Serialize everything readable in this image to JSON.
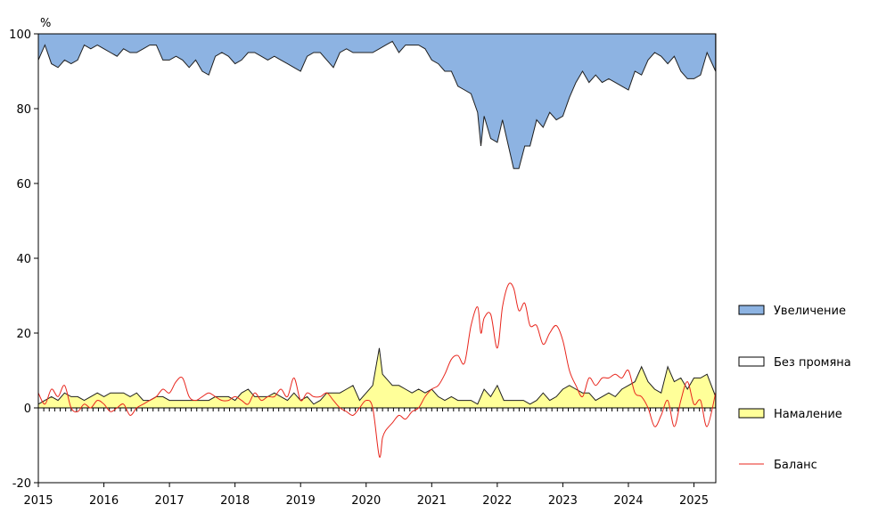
{
  "chart_data": {
    "type": "area",
    "title": "",
    "ylabel": "%",
    "xlabel": "",
    "ylim": [
      -20,
      100
    ],
    "xlim": [
      2015.0,
      2025.333
    ],
    "y_ticks": [
      -20,
      0,
      20,
      40,
      60,
      80,
      100
    ],
    "x_ticks": [
      2015,
      2016,
      2017,
      2018,
      2019,
      2020,
      2021,
      2022,
      2023,
      2024,
      2025
    ],
    "x_tick_labels": [
      "2015",
      "2016",
      "2017",
      "2018",
      "2019",
      "2020",
      "2021",
      "2022",
      "2023",
      "2024",
      "2025"
    ],
    "grid": false,
    "legend_position": "right",
    "series": [
      {
        "name": "Увеличение",
        "kind": "area-top",
        "color": "#8db3e2",
        "x": [
          2015.0,
          2015.1,
          2015.2,
          2015.3,
          2015.4,
          2015.5,
          2015.6,
          2015.7,
          2015.8,
          2015.9,
          2016.0,
          2016.1,
          2016.2,
          2016.3,
          2016.4,
          2016.5,
          2016.6,
          2016.7,
          2016.8,
          2016.9,
          2017.0,
          2017.1,
          2017.2,
          2017.3,
          2017.4,
          2017.5,
          2017.6,
          2017.7,
          2017.8,
          2017.9,
          2018.0,
          2018.1,
          2018.2,
          2018.3,
          2018.4,
          2018.5,
          2018.6,
          2018.7,
          2018.8,
          2018.9,
          2019.0,
          2019.1,
          2019.2,
          2019.3,
          2019.4,
          2019.5,
          2019.6,
          2019.7,
          2019.8,
          2019.9,
          2020.0,
          2020.1,
          2020.2,
          2020.3,
          2020.4,
          2020.5,
          2020.6,
          2020.7,
          2020.8,
          2020.9,
          2021.0,
          2021.1,
          2021.2,
          2021.3,
          2021.4,
          2021.5,
          2021.6,
          2021.7,
          2021.75,
          2021.8,
          2021.9,
          2022.0,
          2022.08,
          2022.17,
          2022.25,
          2022.33,
          2022.42,
          2022.5,
          2022.6,
          2022.7,
          2022.8,
          2022.9,
          2023.0,
          2023.1,
          2023.2,
          2023.3,
          2023.4,
          2023.5,
          2023.6,
          2023.7,
          2023.8,
          2023.9,
          2024.0,
          2024.1,
          2024.2,
          2024.3,
          2024.4,
          2024.5,
          2024.6,
          2024.7,
          2024.8,
          2024.9,
          2025.0,
          2025.1,
          2025.2,
          2025.33
        ],
        "values": [
          93,
          97,
          92,
          91,
          93,
          92,
          93,
          97,
          96,
          97,
          96,
          95,
          94,
          96,
          95,
          95,
          96,
          97,
          97,
          93,
          93,
          94,
          93,
          91,
          93,
          90,
          89,
          94,
          95,
          94,
          92,
          93,
          95,
          95,
          94,
          93,
          94,
          93,
          92,
          91,
          90,
          94,
          95,
          95,
          93,
          91,
          95,
          96,
          95,
          95,
          95,
          95,
          96,
          97,
          98,
          95,
          97,
          97,
          97,
          96,
          93,
          92,
          90,
          90,
          86,
          85,
          84,
          79,
          70,
          78,
          72,
          71,
          77,
          70,
          64,
          64,
          70,
          70,
          77,
          75,
          79,
          77,
          78,
          83,
          87,
          90,
          87,
          89,
          87,
          88,
          87,
          86,
          85,
          90,
          89,
          93,
          95,
          94,
          92,
          94,
          90,
          88,
          88,
          89,
          95,
          90
        ],
        "legend_label": "Увеличение"
      },
      {
        "name": "Без промяна",
        "kind": "area-middle",
        "color": "#ffffff",
        "legend_label": "Без промяна"
      },
      {
        "name": "Намаление",
        "kind": "area-bottom",
        "color": "#ffff99",
        "x": [
          2015.0,
          2015.1,
          2015.2,
          2015.3,
          2015.4,
          2015.5,
          2015.6,
          2015.7,
          2015.8,
          2015.9,
          2016.0,
          2016.1,
          2016.2,
          2016.3,
          2016.4,
          2016.5,
          2016.6,
          2016.7,
          2016.8,
          2016.9,
          2017.0,
          2017.1,
          2017.2,
          2017.3,
          2017.4,
          2017.5,
          2017.6,
          2017.7,
          2017.8,
          2017.9,
          2018.0,
          2018.1,
          2018.2,
          2018.3,
          2018.4,
          2018.5,
          2018.6,
          2018.7,
          2018.8,
          2018.9,
          2019.0,
          2019.1,
          2019.2,
          2019.3,
          2019.4,
          2019.5,
          2019.6,
          2019.7,
          2019.8,
          2019.9,
          2020.0,
          2020.1,
          2020.2,
          2020.25,
          2020.3,
          2020.4,
          2020.5,
          2020.6,
          2020.7,
          2020.8,
          2020.9,
          2021.0,
          2021.1,
          2021.2,
          2021.3,
          2021.4,
          2021.5,
          2021.6,
          2021.7,
          2021.8,
          2021.9,
          2022.0,
          2022.1,
          2022.2,
          2022.3,
          2022.4,
          2022.5,
          2022.6,
          2022.7,
          2022.8,
          2022.9,
          2023.0,
          2023.1,
          2023.2,
          2023.3,
          2023.4,
          2023.5,
          2023.6,
          2023.7,
          2023.8,
          2023.9,
          2024.0,
          2024.1,
          2024.2,
          2024.3,
          2024.4,
          2024.5,
          2024.6,
          2024.7,
          2024.8,
          2024.9,
          2025.0,
          2025.1,
          2025.2,
          2025.33
        ],
        "values": [
          1,
          2,
          3,
          2,
          4,
          3,
          3,
          2,
          3,
          4,
          3,
          4,
          4,
          4,
          3,
          4,
          2,
          2,
          3,
          3,
          2,
          2,
          2,
          2,
          2,
          2,
          2,
          3,
          3,
          3,
          2,
          4,
          5,
          3,
          3,
          3,
          4,
          3,
          2,
          4,
          2,
          3,
          1,
          2,
          4,
          4,
          4,
          5,
          6,
          2,
          4,
          6,
          16,
          9,
          8,
          6,
          6,
          5,
          4,
          5,
          4,
          5,
          3,
          2,
          3,
          2,
          2,
          2,
          1,
          5,
          3,
          6,
          2,
          2,
          2,
          2,
          1,
          2,
          4,
          2,
          3,
          5,
          6,
          5,
          4,
          4,
          2,
          3,
          4,
          3,
          5,
          6,
          7,
          11,
          7,
          5,
          4,
          11,
          7,
          8,
          5,
          8,
          8,
          9,
          3
        ],
        "legend_label": "Намаление"
      },
      {
        "name": "Баланс",
        "kind": "line",
        "color": "#e8251c",
        "x": [
          2015.0,
          2015.1,
          2015.2,
          2015.3,
          2015.4,
          2015.5,
          2015.6,
          2015.7,
          2015.8,
          2015.9,
          2016.0,
          2016.1,
          2016.2,
          2016.3,
          2016.4,
          2016.5,
          2016.6,
          2016.7,
          2016.8,
          2016.9,
          2017.0,
          2017.1,
          2017.2,
          2017.3,
          2017.4,
          2017.5,
          2017.6,
          2017.7,
          2017.8,
          2017.9,
          2018.0,
          2018.1,
          2018.2,
          2018.3,
          2018.4,
          2018.5,
          2018.6,
          2018.7,
          2018.8,
          2018.9,
          2019.0,
          2019.1,
          2019.2,
          2019.3,
          2019.4,
          2019.5,
          2019.6,
          2019.7,
          2019.8,
          2019.9,
          2020.0,
          2020.1,
          2020.2,
          2020.25,
          2020.3,
          2020.4,
          2020.5,
          2020.6,
          2020.7,
          2020.8,
          2020.9,
          2021.0,
          2021.1,
          2021.2,
          2021.3,
          2021.4,
          2021.5,
          2021.6,
          2021.7,
          2021.75,
          2021.8,
          2021.9,
          2022.0,
          2022.08,
          2022.17,
          2022.25,
          2022.33,
          2022.42,
          2022.5,
          2022.6,
          2022.7,
          2022.8,
          2022.9,
          2023.0,
          2023.1,
          2023.2,
          2023.3,
          2023.4,
          2023.5,
          2023.6,
          2023.7,
          2023.8,
          2023.9,
          2024.0,
          2024.1,
          2024.2,
          2024.3,
          2024.4,
          2024.5,
          2024.6,
          2024.7,
          2024.8,
          2024.9,
          2025.0,
          2025.1,
          2025.2,
          2025.33
        ],
        "values": [
          4,
          1,
          5,
          3,
          6,
          0,
          -1,
          1,
          0,
          2,
          1,
          -1,
          0,
          1,
          -2,
          0,
          1,
          2,
          3,
          5,
          4,
          7,
          8,
          3,
          2,
          3,
          4,
          3,
          2,
          2,
          3,
          2,
          1,
          4,
          2,
          3,
          3,
          5,
          3,
          8,
          2,
          4,
          3,
          3,
          4,
          2,
          0,
          -1,
          -2,
          0,
          2,
          0,
          -13,
          -8,
          -6,
          -4,
          -2,
          -3,
          -1,
          0,
          3,
          5,
          6,
          9,
          13,
          14,
          12,
          22,
          27,
          20,
          24,
          25,
          16,
          27,
          33,
          32,
          26,
          28,
          22,
          22,
          17,
          20,
          22,
          18,
          10,
          6,
          3,
          8,
          6,
          8,
          8,
          9,
          8,
          10,
          4,
          3,
          0,
          -5,
          -2,
          2,
          -5,
          2,
          7,
          1,
          2,
          -5,
          4
        ],
        "legend_label": "Баланс"
      }
    ]
  }
}
